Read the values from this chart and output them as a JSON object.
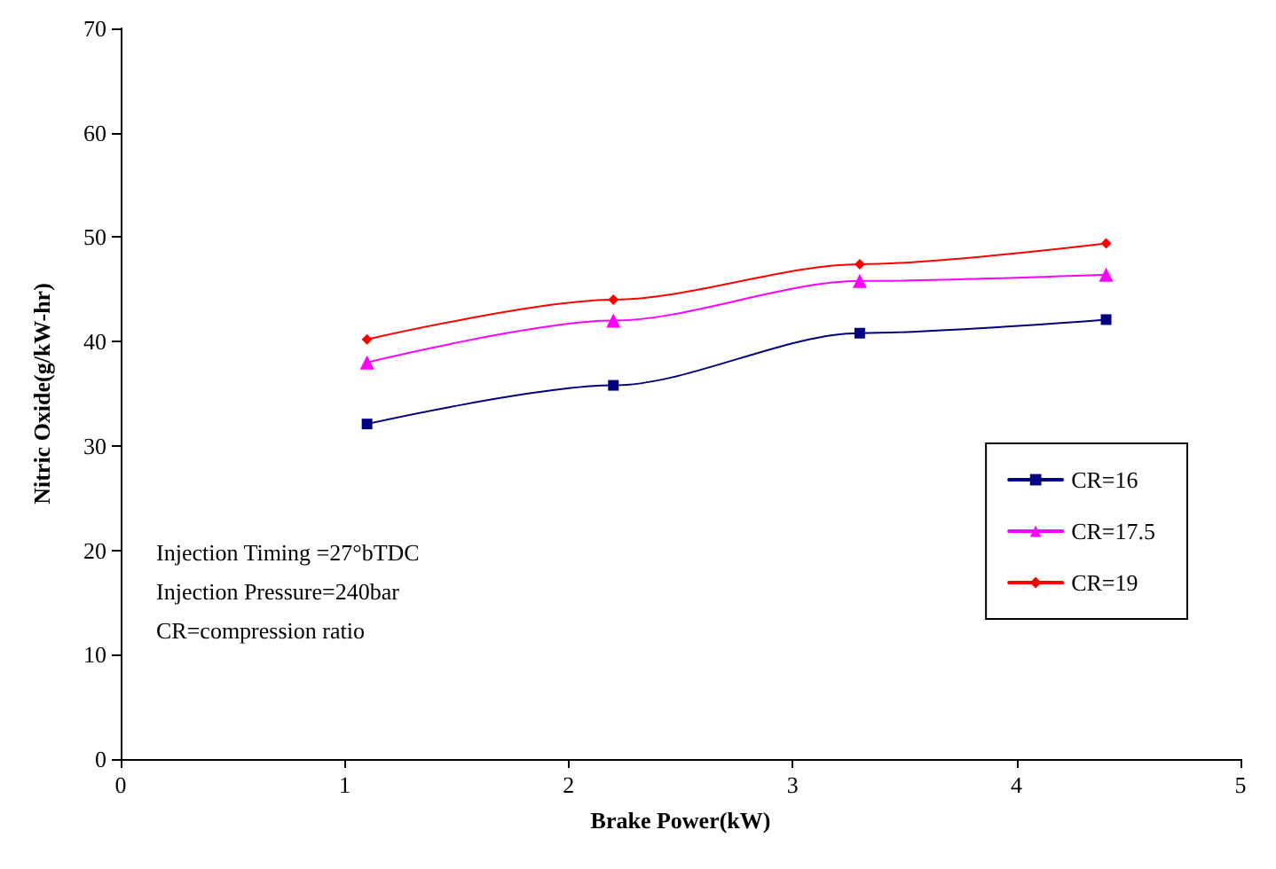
{
  "chart_data": {
    "type": "line",
    "xlabel": "Brake Power(kW)",
    "ylabel": "Nitric Oxide(g/kW-hr)",
    "x": [
      1.1,
      2.2,
      3.3,
      4.4
    ],
    "series": [
      {
        "name": "CR=16",
        "color": "#000080",
        "marker": "square",
        "values": [
          32.1,
          35.8,
          40.8,
          42.1
        ]
      },
      {
        "name": "CR=17.5",
        "color": "#ff00ff",
        "marker": "triangle",
        "values": [
          38,
          42,
          45.8,
          46.4
        ]
      },
      {
        "name": "CR=19",
        "color": "#ff0000",
        "marker": "diamond",
        "values": [
          40.2,
          44,
          47.4,
          49.4
        ]
      }
    ],
    "xlim": [
      0,
      5
    ],
    "xticks": [
      0,
      1,
      2,
      3,
      4,
      5
    ],
    "ylim": [
      0,
      70
    ],
    "yticks": [
      0,
      10,
      20,
      30,
      40,
      50,
      60,
      70
    ],
    "grid": false,
    "legend": "right",
    "annotations": [
      "Injection Timing =27°bTDC",
      "Injection Pressure=240bar",
      "CR=compression ratio"
    ]
  }
}
